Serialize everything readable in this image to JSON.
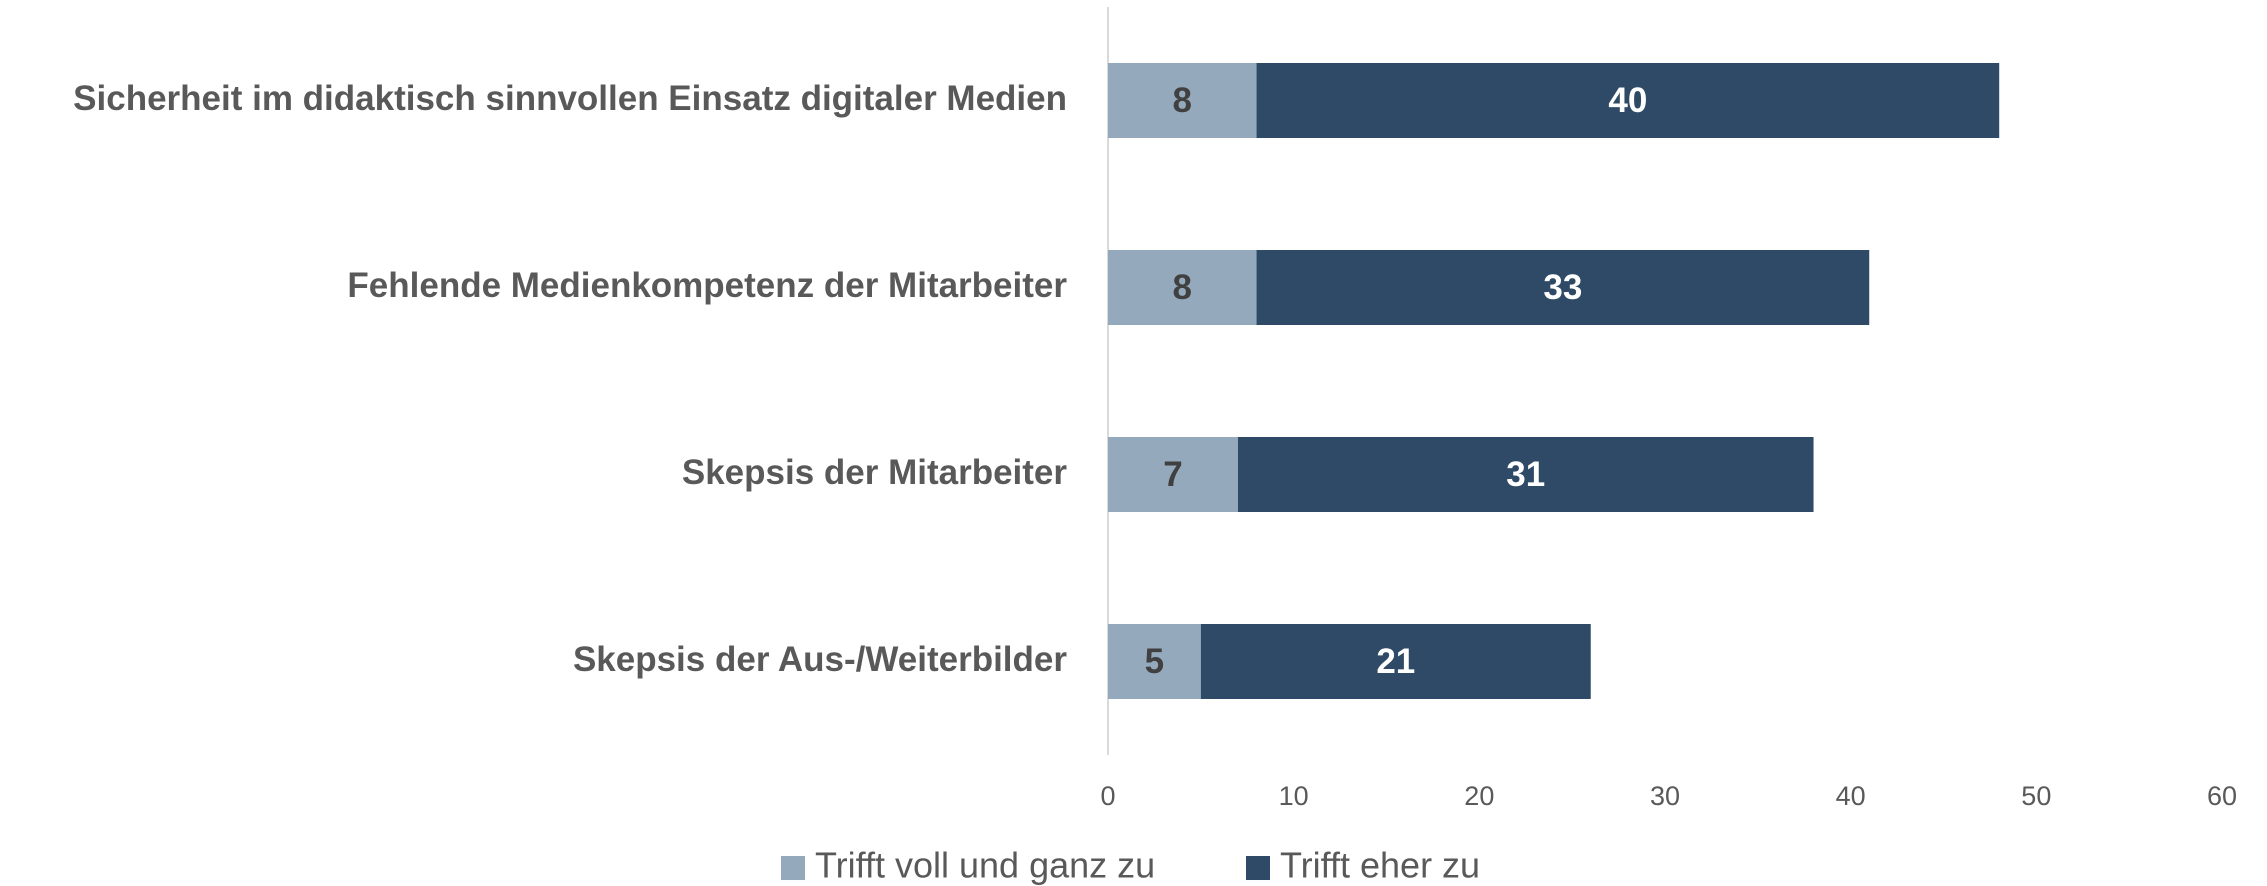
{
  "chart_data": {
    "type": "stacked_barh",
    "categories": [
      "Sicherheit im didaktisch sinnvollen Einsatz digitaler Medien",
      "Fehlende Medienkompetenz der Mitarbeiter",
      "Skepsis der Mitarbeiter",
      "Skepsis der Aus-/Weiterbilder"
    ],
    "series": [
      {
        "name": "Trifft voll und ganz zu",
        "color": "#95a9bd",
        "values": [
          8,
          8,
          7,
          5
        ]
      },
      {
        "name": "Trifft eher zu",
        "color": "#2e4a66",
        "values": [
          40,
          33,
          31,
          21
        ]
      }
    ],
    "xlim": [
      0,
      60
    ],
    "xticks": [
      0,
      10,
      20,
      30,
      40,
      50,
      60
    ],
    "grid": false,
    "legend": "bottom"
  }
}
